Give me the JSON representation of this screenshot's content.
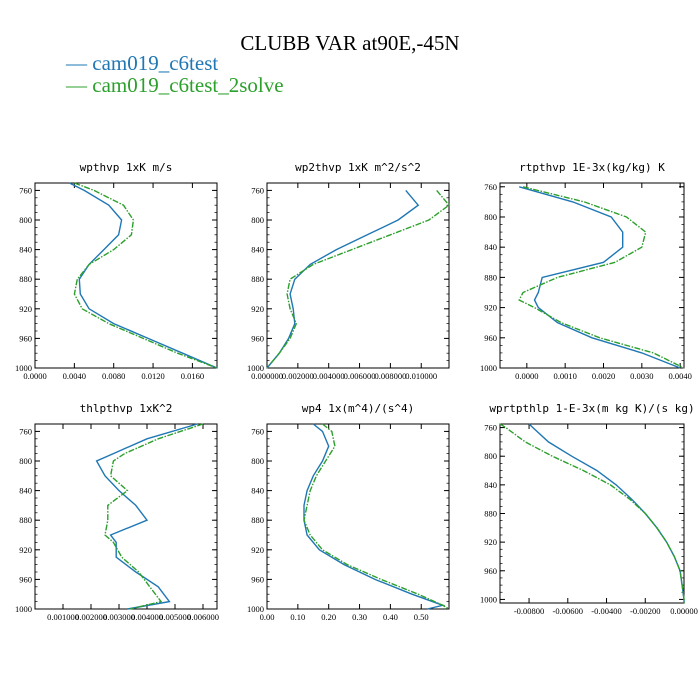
{
  "title": "CLUBB VAR at90E,-45N",
  "legend": [
    {
      "label": "cam019_c6test",
      "color": "#1f77b4"
    },
    {
      "label": "cam019_c6test_2solve",
      "color": "#2ca02c"
    }
  ],
  "chart_data": [
    {
      "type": "line",
      "title": "wpthvp  1xK m/s",
      "ylim": [
        1000,
        750
      ],
      "xlim": [
        0,
        0.0185
      ],
      "yticks": [
        "760",
        "800",
        "840",
        "880",
        "920",
        "960",
        "1000"
      ],
      "xticks": [
        "0.0000",
        "0.0040",
        "0.0080",
        "0.0120",
        "0.0160"
      ],
      "y": [
        750,
        760,
        780,
        800,
        820,
        840,
        860,
        880,
        900,
        920,
        940,
        960,
        980,
        1000
      ],
      "series": [
        {
          "name": "cam019_c6test",
          "values": [
            0.0035,
            0.005,
            0.0075,
            0.0088,
            0.0085,
            0.007,
            0.0055,
            0.0045,
            0.0046,
            0.0055,
            0.008,
            0.0115,
            0.015,
            0.0185
          ]
        },
        {
          "name": "cam019_c6test_2solve",
          "values": [
            0.004,
            0.006,
            0.009,
            0.01,
            0.0098,
            0.008,
            0.0055,
            0.0043,
            0.004,
            0.0048,
            0.0075,
            0.011,
            0.0145,
            0.0185
          ]
        }
      ]
    },
    {
      "type": "line",
      "title": "wp2thvp  1xK m^2/s^2",
      "ylim": [
        1000,
        750
      ],
      "xlim": [
        0,
        0.0118
      ],
      "yticks": [
        "760",
        "800",
        "840",
        "880",
        "920",
        "960",
        "1000"
      ],
      "xticks": [
        "0.000000",
        "0.002000",
        "0.004000",
        "0.006000",
        "0.008000",
        "0.010000"
      ],
      "y": [
        760,
        780,
        800,
        820,
        840,
        860,
        880,
        900,
        920,
        940,
        960,
        980,
        1000
      ],
      "series": [
        {
          "name": "cam019_c6test",
          "values": [
            0.009,
            0.0098,
            0.0085,
            0.0065,
            0.0045,
            0.0028,
            0.0018,
            0.0015,
            0.0017,
            0.0018,
            0.0014,
            0.0008,
            0.0
          ]
        },
        {
          "name": "cam019_c6test_2solve",
          "values": [
            0.011,
            0.0118,
            0.0105,
            0.008,
            0.0055,
            0.003,
            0.0015,
            0.0013,
            0.0015,
            0.0019,
            0.0015,
            0.0008,
            0.0
          ]
        }
      ]
    },
    {
      "type": "line",
      "title": "rtpthvp  1E-3x(kg/kg) K",
      "ylim": [
        1000,
        755
      ],
      "xlim": [
        -0.0007,
        0.0041
      ],
      "yticks": [
        "760",
        "800",
        "840",
        "880",
        "920",
        "960",
        "1000"
      ],
      "xticks": [
        "0.0000",
        "0.0010",
        "0.0020",
        "0.0030",
        "0.0040"
      ],
      "y": [
        760,
        780,
        800,
        820,
        840,
        860,
        880,
        900,
        910,
        920,
        940,
        960,
        980,
        1000
      ],
      "series": [
        {
          "name": "cam019_c6test",
          "values": [
            -0.0002,
            0.0012,
            0.0022,
            0.0025,
            0.0025,
            0.002,
            0.0004,
            0.0003,
            0.0002,
            0.0003,
            0.0008,
            0.0017,
            0.003,
            0.004
          ]
        },
        {
          "name": "cam019_c6test_2solve",
          "values": [
            -0.0001,
            0.0015,
            0.0026,
            0.0031,
            0.003,
            0.0023,
            0.0008,
            -0.0001,
            -0.0002,
            0.0002,
            0.0009,
            0.0019,
            0.0033,
            0.0041
          ]
        }
      ]
    },
    {
      "type": "line",
      "title": "thlpthvp  1xK^2",
      "ylim": [
        1000,
        750
      ],
      "xlim": [
        0,
        0.0065
      ],
      "yticks": [
        "760",
        "800",
        "840",
        "880",
        "920",
        "960",
        "1000"
      ],
      "xticks": [
        "0.001000",
        "0.002000",
        "0.003000",
        "0.004000",
        "0.005000",
        "0.006000"
      ],
      "y": [
        750,
        770,
        790,
        800,
        820,
        840,
        860,
        880,
        900,
        910,
        930,
        950,
        970,
        990,
        1000
      ],
      "series": [
        {
          "name": "cam019_c6test",
          "values": [
            0.0058,
            0.004,
            0.0028,
            0.0022,
            0.0025,
            0.003,
            0.0036,
            0.004,
            0.0027,
            0.0029,
            0.0029,
            0.0036,
            0.0044,
            0.0048,
            0.0033
          ]
        },
        {
          "name": "cam019_c6test_2solve",
          "values": [
            0.006,
            0.0044,
            0.0032,
            0.0028,
            0.0027,
            0.0033,
            0.0026,
            0.0026,
            0.0025,
            0.0028,
            0.0031,
            0.0037,
            0.0041,
            0.0045,
            0.0034
          ]
        }
      ]
    },
    {
      "type": "line",
      "title": "wp4  1x(m^4)/(s^4)",
      "ylim": [
        1000,
        750
      ],
      "xlim": [
        0,
        0.59
      ],
      "yticks": [
        "760",
        "800",
        "840",
        "880",
        "920",
        "960",
        "1000"
      ],
      "xticks": [
        "0.00",
        "0.10",
        "0.20",
        "0.30",
        "0.40",
        "0.50"
      ],
      "y": [
        750,
        760,
        780,
        800,
        820,
        840,
        860,
        880,
        900,
        920,
        940,
        960,
        980,
        995,
        1000
      ],
      "series": [
        {
          "name": "cam019_c6test",
          "values": [
            0.15,
            0.18,
            0.2,
            0.18,
            0.15,
            0.13,
            0.12,
            0.12,
            0.13,
            0.17,
            0.25,
            0.35,
            0.47,
            0.57,
            0.52
          ]
        },
        {
          "name": "cam019_c6test_2solve",
          "values": [
            0.18,
            0.21,
            0.22,
            0.19,
            0.16,
            0.14,
            0.13,
            0.12,
            0.14,
            0.18,
            0.26,
            0.37,
            0.49,
            0.57,
            0.59
          ]
        }
      ]
    },
    {
      "type": "line",
      "title": "wprtpthlp  1-E-3x(m kg K)/(s kg)",
      "ylim": [
        1005,
        755
      ],
      "xlim": [
        -0.0095,
        0.0
      ],
      "yticks": [
        "760",
        "800",
        "840",
        "880",
        "920",
        "960",
        "1000"
      ],
      "xticks": [
        "-0.00800",
        "-0.00600",
        "-0.00400",
        "-0.00200",
        "0.00000"
      ],
      "y": [
        755,
        760,
        780,
        800,
        820,
        840,
        860,
        880,
        900,
        920,
        940,
        960,
        980,
        1000,
        1005
      ],
      "series": [
        {
          "name": "cam019_c6test",
          "values": [
            -0.008,
            -0.0078,
            -0.007,
            -0.0058,
            -0.0045,
            -0.0035,
            -0.0027,
            -0.002,
            -0.0014,
            -0.0009,
            -0.0005,
            -0.0002,
            -0.0001,
            0.0,
            0.0
          ]
        },
        {
          "name": "cam019_c6test_2solve",
          "values": [
            -0.0095,
            -0.0092,
            -0.0082,
            -0.0068,
            -0.0052,
            -0.0038,
            -0.0028,
            -0.002,
            -0.0014,
            -0.0009,
            -0.0005,
            -0.0002,
            -0.0001,
            0.0,
            0.0
          ]
        }
      ]
    }
  ]
}
